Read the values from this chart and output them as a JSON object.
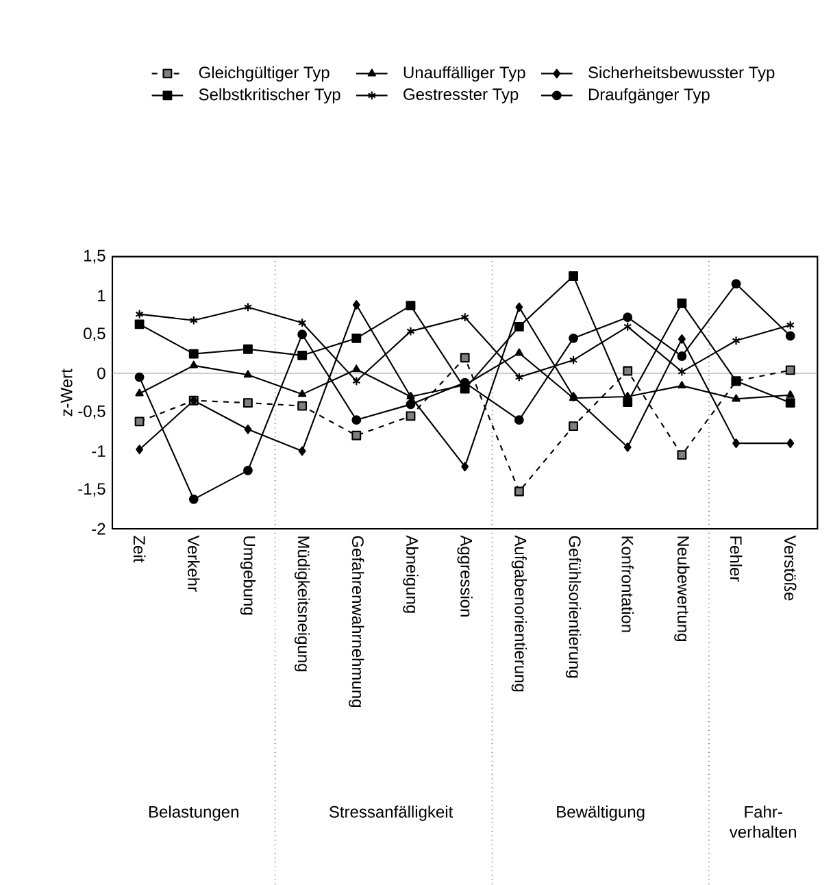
{
  "chart_data": {
    "type": "line",
    "ylabel": "z-Wert",
    "categories": [
      "Zeit",
      "Verkehr",
      "Umgebung",
      "Müdigkeitsneigung",
      "Gefahrenwahrnehmung",
      "Abneigung",
      "Aggression",
      "Aufgabenorientierung",
      "Gefühlsorientierung",
      "Konfrontation",
      "Neubewertung",
      "Fehler",
      "Verstöße"
    ],
    "series": [
      {
        "name": "Gleichgültiger Typ",
        "color": "#000000",
        "marker": "square",
        "line_style": "dashed",
        "values": [
          -0.62,
          -0.35,
          -0.38,
          -0.42,
          -0.8,
          -0.55,
          0.2,
          -1.52,
          -0.68,
          0.03,
          -1.05,
          -0.1,
          0.04
        ]
      },
      {
        "name": "Unauffälliger Typ",
        "color": "#000000",
        "marker": "triangle",
        "line_style": "solid",
        "values": [
          -0.26,
          0.1,
          -0.02,
          -0.27,
          0.05,
          -0.3,
          -0.15,
          0.26,
          -0.32,
          -0.3,
          -0.16,
          -0.33,
          -0.28
        ]
      },
      {
        "name": "Sicherheitsbewusster Typ",
        "color": "#000000",
        "marker": "diamond",
        "line_style": "solid",
        "values": [
          -0.98,
          -0.35,
          -0.72,
          -1.0,
          0.88,
          -0.3,
          -1.2,
          0.85,
          -0.3,
          -0.95,
          0.44,
          -0.9,
          -0.9
        ]
      },
      {
        "name": "Selbstkritischer Typ",
        "color": "#000000",
        "marker": "square",
        "line_style": "solid",
        "values": [
          0.63,
          0.25,
          0.31,
          0.23,
          0.45,
          0.87,
          -0.2,
          0.6,
          1.25,
          -0.37,
          0.9,
          -0.1,
          -0.38
        ]
      },
      {
        "name": "Gestresster Typ",
        "color": "#000000",
        "marker": "cross",
        "line_style": "solid",
        "values": [
          0.76,
          0.68,
          0.85,
          0.65,
          -0.1,
          0.54,
          0.72,
          -0.05,
          0.17,
          0.6,
          0.02,
          0.42,
          0.62
        ]
      },
      {
        "name": "Draufgänger Typ",
        "color": "#000000",
        "marker": "circle",
        "line_style": "solid",
        "values": [
          -0.05,
          -1.62,
          -1.25,
          0.5,
          -0.6,
          -0.4,
          -0.12,
          -0.6,
          0.45,
          0.72,
          0.22,
          1.15,
          0.48
        ]
      }
    ],
    "ylim": [
      -2,
      1.5
    ],
    "yticks": [
      -2,
      {
        "value": -1.5,
        "label": "-1,5"
      },
      -1,
      {
        "value": -0.5,
        "label": "-0,5"
      },
      0,
      {
        "value": 0.5,
        "label": "0,5"
      },
      1,
      {
        "value": 1.5,
        "label": "1,5"
      }
    ],
    "ref_lines": [
      {
        "axis": "y",
        "value": 0,
        "color": "#999999",
        "line_style": "solid"
      }
    ],
    "annotations": [
      "Belastungen",
      "Stressanfälligkeit",
      "Bewältigung",
      "Fahr- verhalten"
    ],
    "legend": "top"
  }
}
